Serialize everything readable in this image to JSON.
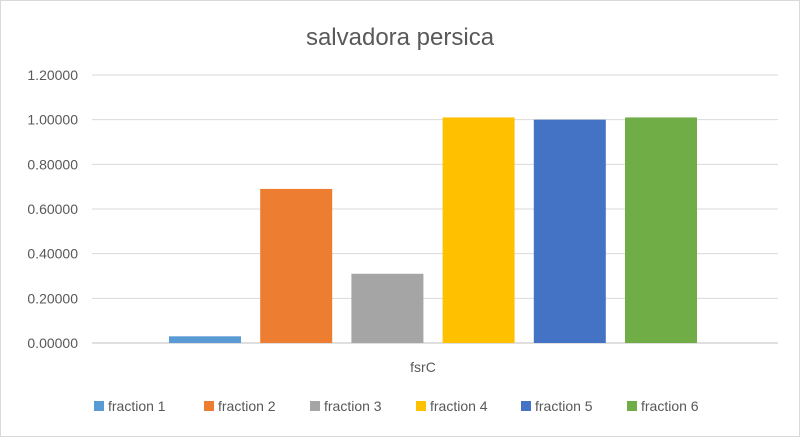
{
  "chart_data": {
    "type": "bar",
    "title": "salvadora persica",
    "categories": [
      "fsrC"
    ],
    "y_ticks": [
      "0.00000",
      "0.20000",
      "0.40000",
      "0.60000",
      "0.80000",
      "1.00000",
      "1.20000"
    ],
    "ylim": [
      0,
      1.2
    ],
    "grid": true,
    "legend_position": "bottom",
    "series": [
      {
        "name": "fraction 1",
        "values": [
          0.03
        ],
        "color": "#5B9BD5"
      },
      {
        "name": "fraction 2",
        "values": [
          0.69
        ],
        "color": "#ED7D31"
      },
      {
        "name": "fraction 3",
        "values": [
          0.31
        ],
        "color": "#A5A5A5"
      },
      {
        "name": "fraction 4",
        "values": [
          1.01
        ],
        "color": "#FFC000"
      },
      {
        "name": "fraction 5",
        "values": [
          1.0
        ],
        "color": "#4472C4"
      },
      {
        "name": "fraction 6",
        "values": [
          1.01
        ],
        "color": "#70AD47"
      }
    ]
  }
}
